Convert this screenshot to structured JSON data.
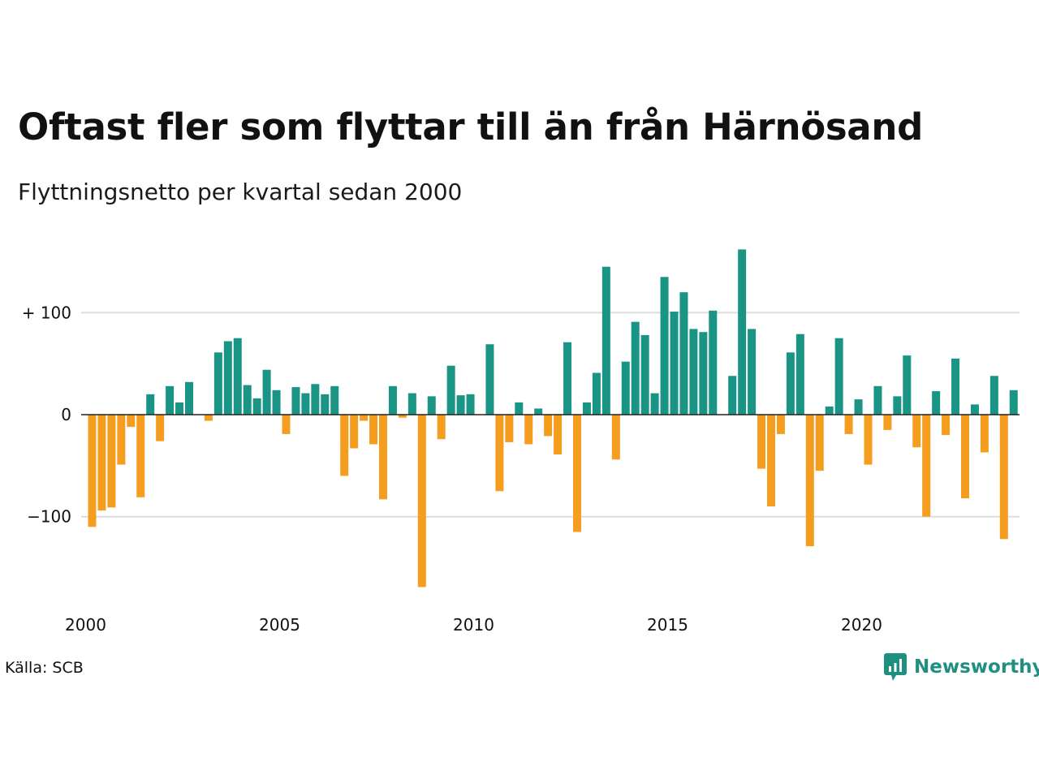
{
  "title": "Oftast fler som flyttar till än från Härnösand",
  "subtitle": "Flyttningsnetto per kvartal sedan 2000",
  "source": "Källa: SCB",
  "brand": {
    "name": "Newsworthy",
    "icon": "newsworthy-logo-icon"
  },
  "colors": {
    "positive": "#1a9485",
    "negative": "#f49d1f",
    "grid": "#dddddd",
    "zero": "#222222"
  },
  "chart_data": {
    "type": "bar",
    "title": "Oftast fler som flyttar till än från Härnösand",
    "subtitle": "Flyttningsnetto per kvartal sedan 2000",
    "xlabel": "",
    "ylabel": "",
    "x_start": "2000 Q1",
    "x_step": "quarter",
    "xticks": [
      2000,
      2005,
      2010,
      2015,
      2020
    ],
    "yticks": [
      {
        "value": 100,
        "label": "+ 100"
      },
      {
        "value": 0,
        "label": "0"
      },
      {
        "value": -100,
        "label": "−100"
      }
    ],
    "ylim": [
      -175,
      165
    ],
    "grid": true,
    "values": [
      -110,
      -94,
      -91,
      -49,
      -12,
      -81,
      20,
      -26,
      28,
      12,
      32,
      0,
      -6,
      61,
      72,
      75,
      29,
      16,
      44,
      24,
      -19,
      27,
      21,
      30,
      20,
      28,
      -60,
      -33,
      -6,
      -29,
      -83,
      28,
      -3,
      21,
      -169,
      18,
      -24,
      48,
      19,
      20,
      0,
      69,
      -75,
      -27,
      12,
      -29,
      6,
      -21,
      -39,
      71,
      -115,
      12,
      41,
      145,
      -44,
      52,
      91,
      78,
      21,
      135,
      101,
      120,
      84,
      81,
      102,
      0,
      38,
      162,
      84,
      -53,
      -90,
      -19,
      61,
      79,
      -129,
      -55,
      8,
      75,
      -19,
      15,
      -49,
      28,
      -15,
      18,
      58,
      -32,
      -100,
      23,
      -20,
      55,
      -82,
      10,
      -37,
      38,
      -122,
      24
    ]
  }
}
